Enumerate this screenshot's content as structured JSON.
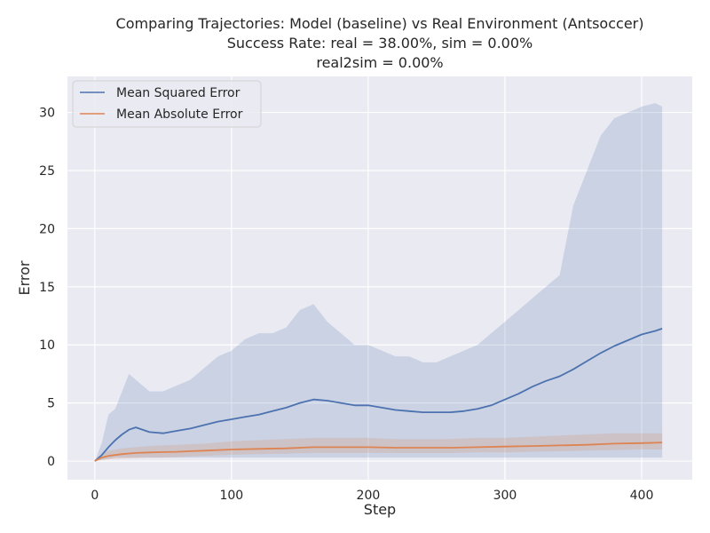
{
  "chart_data": {
    "type": "line",
    "title_lines": [
      "Comparing Trajectories: Model (baseline) vs Real Environment (Antsoccer)",
      "Success Rate: real = 38.00%, sim = 0.00%",
      "real2sim = 0.00%"
    ],
    "xlabel": "Step",
    "ylabel": "Error",
    "xlim": [
      -20,
      437
    ],
    "ylim": [
      -1.6,
      33.1
    ],
    "xticks": [
      0,
      100,
      200,
      300,
      400
    ],
    "yticks": [
      0,
      5,
      10,
      15,
      20,
      25,
      30
    ],
    "grid": true,
    "legend_position": "top-left",
    "colors": {
      "background": "#eaeaf2",
      "grid": "#ffffff",
      "mse": "#4c72b0",
      "mae": "#dd8452"
    },
    "series": [
      {
        "name": "Mean Squared Error",
        "x": [
          0,
          5,
          10,
          15,
          20,
          25,
          30,
          40,
          50,
          60,
          70,
          80,
          90,
          100,
          110,
          120,
          130,
          140,
          150,
          160,
          170,
          180,
          190,
          200,
          210,
          220,
          230,
          240,
          250,
          260,
          270,
          280,
          290,
          300,
          310,
          320,
          330,
          340,
          350,
          360,
          370,
          380,
          390,
          400,
          410,
          415
        ],
        "values": [
          0.0,
          0.5,
          1.2,
          1.8,
          2.3,
          2.7,
          2.9,
          2.5,
          2.4,
          2.6,
          2.8,
          3.1,
          3.4,
          3.6,
          3.8,
          4.0,
          4.3,
          4.6,
          5.0,
          5.3,
          5.2,
          5.0,
          4.8,
          4.8,
          4.6,
          4.4,
          4.3,
          4.2,
          4.2,
          4.2,
          4.3,
          4.5,
          4.8,
          5.3,
          5.8,
          6.4,
          6.9,
          7.3,
          7.9,
          8.6,
          9.3,
          9.9,
          10.4,
          10.9,
          11.2,
          11.4
        ],
        "lower": [
          0.0,
          0.1,
          0.2,
          0.3,
          0.3,
          0.3,
          0.3,
          0.3,
          0.3,
          0.3,
          0.3,
          0.3,
          0.3,
          0.3,
          0.3,
          0.3,
          0.3,
          0.3,
          0.3,
          0.3,
          0.3,
          0.3,
          0.3,
          0.3,
          0.3,
          0.3,
          0.3,
          0.3,
          0.3,
          0.3,
          0.3,
          0.3,
          0.3,
          0.3,
          0.3,
          0.3,
          0.3,
          0.3,
          0.3,
          0.3,
          0.3,
          0.3,
          0.3,
          0.3,
          0.3,
          0.3
        ],
        "upper": [
          0.0,
          1.5,
          4.0,
          4.5,
          6.0,
          7.5,
          7.0,
          6.0,
          6.0,
          6.5,
          7.0,
          8.0,
          9.0,
          9.5,
          10.5,
          11.0,
          11.0,
          11.5,
          13.0,
          13.5,
          12.0,
          11.0,
          10.0,
          10.0,
          9.5,
          9.0,
          9.0,
          8.5,
          8.5,
          9.0,
          9.5,
          10.0,
          11.0,
          12.0,
          13.0,
          14.0,
          15.0,
          16.0,
          22.0,
          25.0,
          28.0,
          29.5,
          30.0,
          30.5,
          30.8,
          30.5
        ]
      },
      {
        "name": "Mean Absolute Error",
        "x": [
          0,
          5,
          10,
          20,
          30,
          40,
          50,
          60,
          70,
          80,
          90,
          100,
          120,
          140,
          160,
          180,
          200,
          220,
          240,
          260,
          280,
          300,
          320,
          340,
          360,
          380,
          400,
          415
        ],
        "values": [
          0.0,
          0.3,
          0.45,
          0.6,
          0.7,
          0.75,
          0.78,
          0.8,
          0.85,
          0.9,
          0.95,
          1.0,
          1.05,
          1.1,
          1.2,
          1.2,
          1.2,
          1.15,
          1.15,
          1.15,
          1.2,
          1.25,
          1.3,
          1.35,
          1.4,
          1.5,
          1.55,
          1.6
        ],
        "lower": [
          0.0,
          0.1,
          0.15,
          0.2,
          0.25,
          0.3,
          0.3,
          0.35,
          0.4,
          0.45,
          0.5,
          0.55,
          0.6,
          0.65,
          0.7,
          0.7,
          0.7,
          0.7,
          0.7,
          0.7,
          0.75,
          0.75,
          0.8,
          0.85,
          0.9,
          0.95,
          1.0,
          1.0
        ],
        "upper": [
          0.0,
          0.6,
          0.9,
          1.1,
          1.2,
          1.3,
          1.35,
          1.4,
          1.45,
          1.5,
          1.6,
          1.7,
          1.8,
          1.9,
          2.0,
          2.0,
          2.0,
          1.9,
          1.9,
          1.9,
          2.0,
          2.0,
          2.1,
          2.2,
          2.3,
          2.4,
          2.4,
          2.4
        ]
      }
    ]
  }
}
